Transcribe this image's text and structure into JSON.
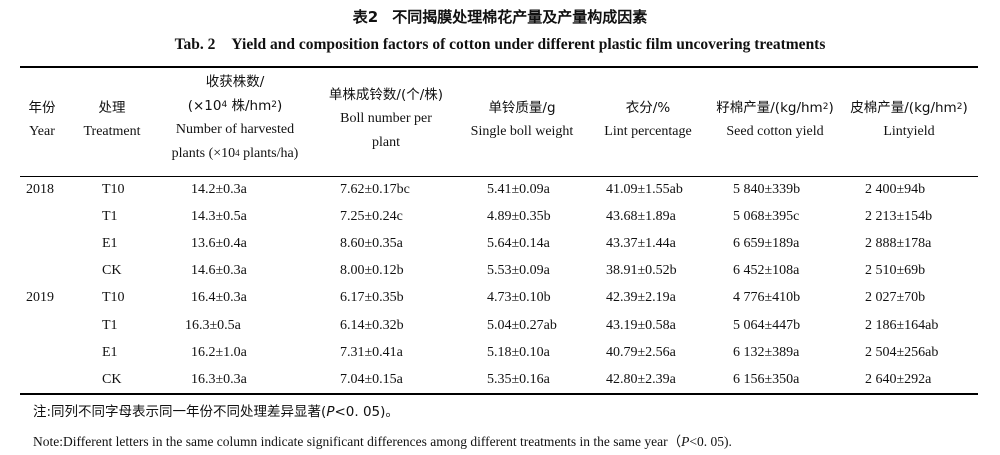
{
  "title": {
    "cn_number": "表2",
    "cn_text": "不同揭膜处理棉花产量及产量构成因素",
    "en_number": "Tab. 2",
    "en_text": "Yield and composition factors of cotton under different plastic film uncovering treatments"
  },
  "headers": {
    "year_cn": "年份",
    "year_en": "Year",
    "treatment_cn": "处理",
    "treatment_en": "Treatment",
    "plants_cn": "收获株数/",
    "plants_unit_cn_pre": "(×10",
    "plants_unit_cn_sup": "4",
    "plants_unit_cn_post": " 株/hm",
    "plants_unit_cn_sup2": "2",
    "plants_unit_cn_end": ")",
    "plants_en1": "Number of harvested",
    "plants_en2_pre": "plants (×10",
    "plants_en2_sup": "4",
    "plants_en2_post": " plants/ha)",
    "boll_cn": "单株成铃数/(个/株)",
    "boll_en1": "Boll number per",
    "boll_en2": "plant",
    "weight_cn": "单铃质量/g",
    "weight_en": "Single boll weight",
    "lint_cn": "衣分/%",
    "lint_en": "Lint percentage",
    "seed_cn_pre": "籽棉产量/(kg/hm",
    "seed_cn_sup": "2",
    "seed_cn_post": ")",
    "seed_en": "Seed cotton yield",
    "lintyield_cn_pre": "皮棉产量/(kg/hm",
    "lintyield_cn_sup": "2",
    "lintyield_cn_post": ")",
    "lintyield_en": "Lintyield"
  },
  "rows": [
    {
      "year": "2018",
      "treatment": "T10",
      "plants": "14.2±0.3a",
      "boll": "7.62±0.17bc",
      "weight": "5.41±0.09a",
      "lint": "41.09±1.55ab",
      "seed": "5 840±339b",
      "lintyield": "2 400±94b"
    },
    {
      "year": "",
      "treatment": "T1",
      "plants": "14.3±0.5a",
      "boll": "7.25±0.24c",
      "weight": "4.89±0.35b",
      "lint": "43.68±1.89a",
      "seed": "5 068±395c",
      "lintyield": "2 213±154b"
    },
    {
      "year": "",
      "treatment": "E1",
      "plants": "13.6±0.4a",
      "boll": "8.60±0.35a",
      "weight": "5.64±0.14a",
      "lint": "43.37±1.44a",
      "seed": "6 659±189a",
      "lintyield": "2 888±178a"
    },
    {
      "year": "",
      "treatment": "CK",
      "plants": "14.6±0.3a",
      "boll": "8.00±0.12b",
      "weight": "5.53±0.09a",
      "lint": "38.91±0.52b",
      "seed": "6 452±108a",
      "lintyield": "2 510±69b"
    },
    {
      "year": "2019",
      "treatment": "T10",
      "plants": "16.4±0.3a",
      "boll": "6.17±0.35b",
      "weight": "4.73±0.10b",
      "lint": "42.39±2.19a",
      "seed": "4 776±410b",
      "lintyield": "2 027±70b"
    },
    {
      "year": "",
      "treatment": "T1",
      "plants": "16.3±0.5a",
      "boll": "6.14±0.32b",
      "weight": "5.04±0.27ab",
      "lint": "43.19±0.58a",
      "seed": "5 064±447b",
      "lintyield": "2 186±164ab"
    },
    {
      "year": "",
      "treatment": "E1",
      "plants": "16.2±1.0a",
      "boll": "7.31±0.41a",
      "weight": "5.18±0.10a",
      "lint": "40.79±2.56a",
      "seed": "6 132±389a",
      "lintyield": "2 504±256ab"
    },
    {
      "year": "",
      "treatment": "CK",
      "plants": "16.3±0.3a",
      "boll": "7.04±0.15a",
      "weight": "5.35±0.16a",
      "lint": "42.80±2.39a",
      "seed": "6 156±350a",
      "lintyield": "2 640±292a"
    }
  ],
  "notes": {
    "cn_pre": "注:同列不同字母表示同一年份不同处理差异显著(",
    "cn_p": "P",
    "cn_post": "<0. 05)。",
    "en_pre": "Note:Different letters in the same column indicate significant differences among different treatments in the same year（",
    "en_p": "P",
    "en_post": "<0. 05)."
  }
}
